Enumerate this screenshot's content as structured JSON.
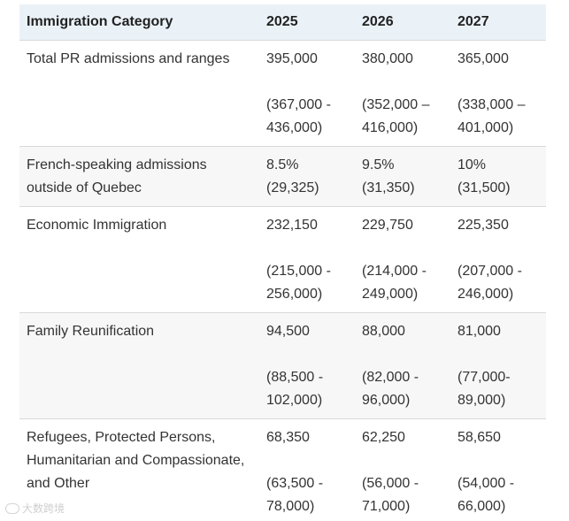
{
  "table": {
    "headers": [
      "Immigration Category",
      "2025",
      "2026",
      "2027"
    ],
    "rows": [
      {
        "category": "Total PR admissions and ranges",
        "cells": [
          {
            "value": "395,000",
            "range": "(367,000 -\n436,000)"
          },
          {
            "value": "380,000",
            "range": "(352,000 –\n416,000)"
          },
          {
            "value": "365,000",
            "range": "(338,000 –\n401,000)"
          }
        ]
      },
      {
        "category": "French-speaking admissions\noutside of Quebec",
        "cells": [
          {
            "value": "8.5%",
            "range": "(29,325)"
          },
          {
            "value": "9.5%",
            "range": "(31,350)"
          },
          {
            "value": "10%",
            "range": "(31,500)"
          }
        ]
      },
      {
        "category": "Economic Immigration",
        "cells": [
          {
            "value": "232,150",
            "range": "(215,000 -\n256,000)"
          },
          {
            "value": "229,750",
            "range": "(214,000 -\n249,000)"
          },
          {
            "value": "225,350",
            "range": "(207,000 -\n246,000)"
          }
        ]
      },
      {
        "category": "Family Reunification",
        "cells": [
          {
            "value": "94,500",
            "range": "(88,500 -\n102,000)"
          },
          {
            "value": "88,000",
            "range": "(82,000 -\n96,000)"
          },
          {
            "value": "81,000",
            "range": "(77,000-\n89,000)"
          }
        ]
      },
      {
        "category": "Refugees, Protected Persons,\nHumanitarian and Compassionate,\nand Other",
        "cells": [
          {
            "value": "68,350",
            "range": "(63,500 -\n78,000)"
          },
          {
            "value": "62,250",
            "range": "(56,000 -\n71,000)"
          },
          {
            "value": "58,650",
            "range": "(54,000 -\n66,000)"
          }
        ]
      }
    ]
  },
  "watermark": {
    "text": "大数跨境"
  }
}
